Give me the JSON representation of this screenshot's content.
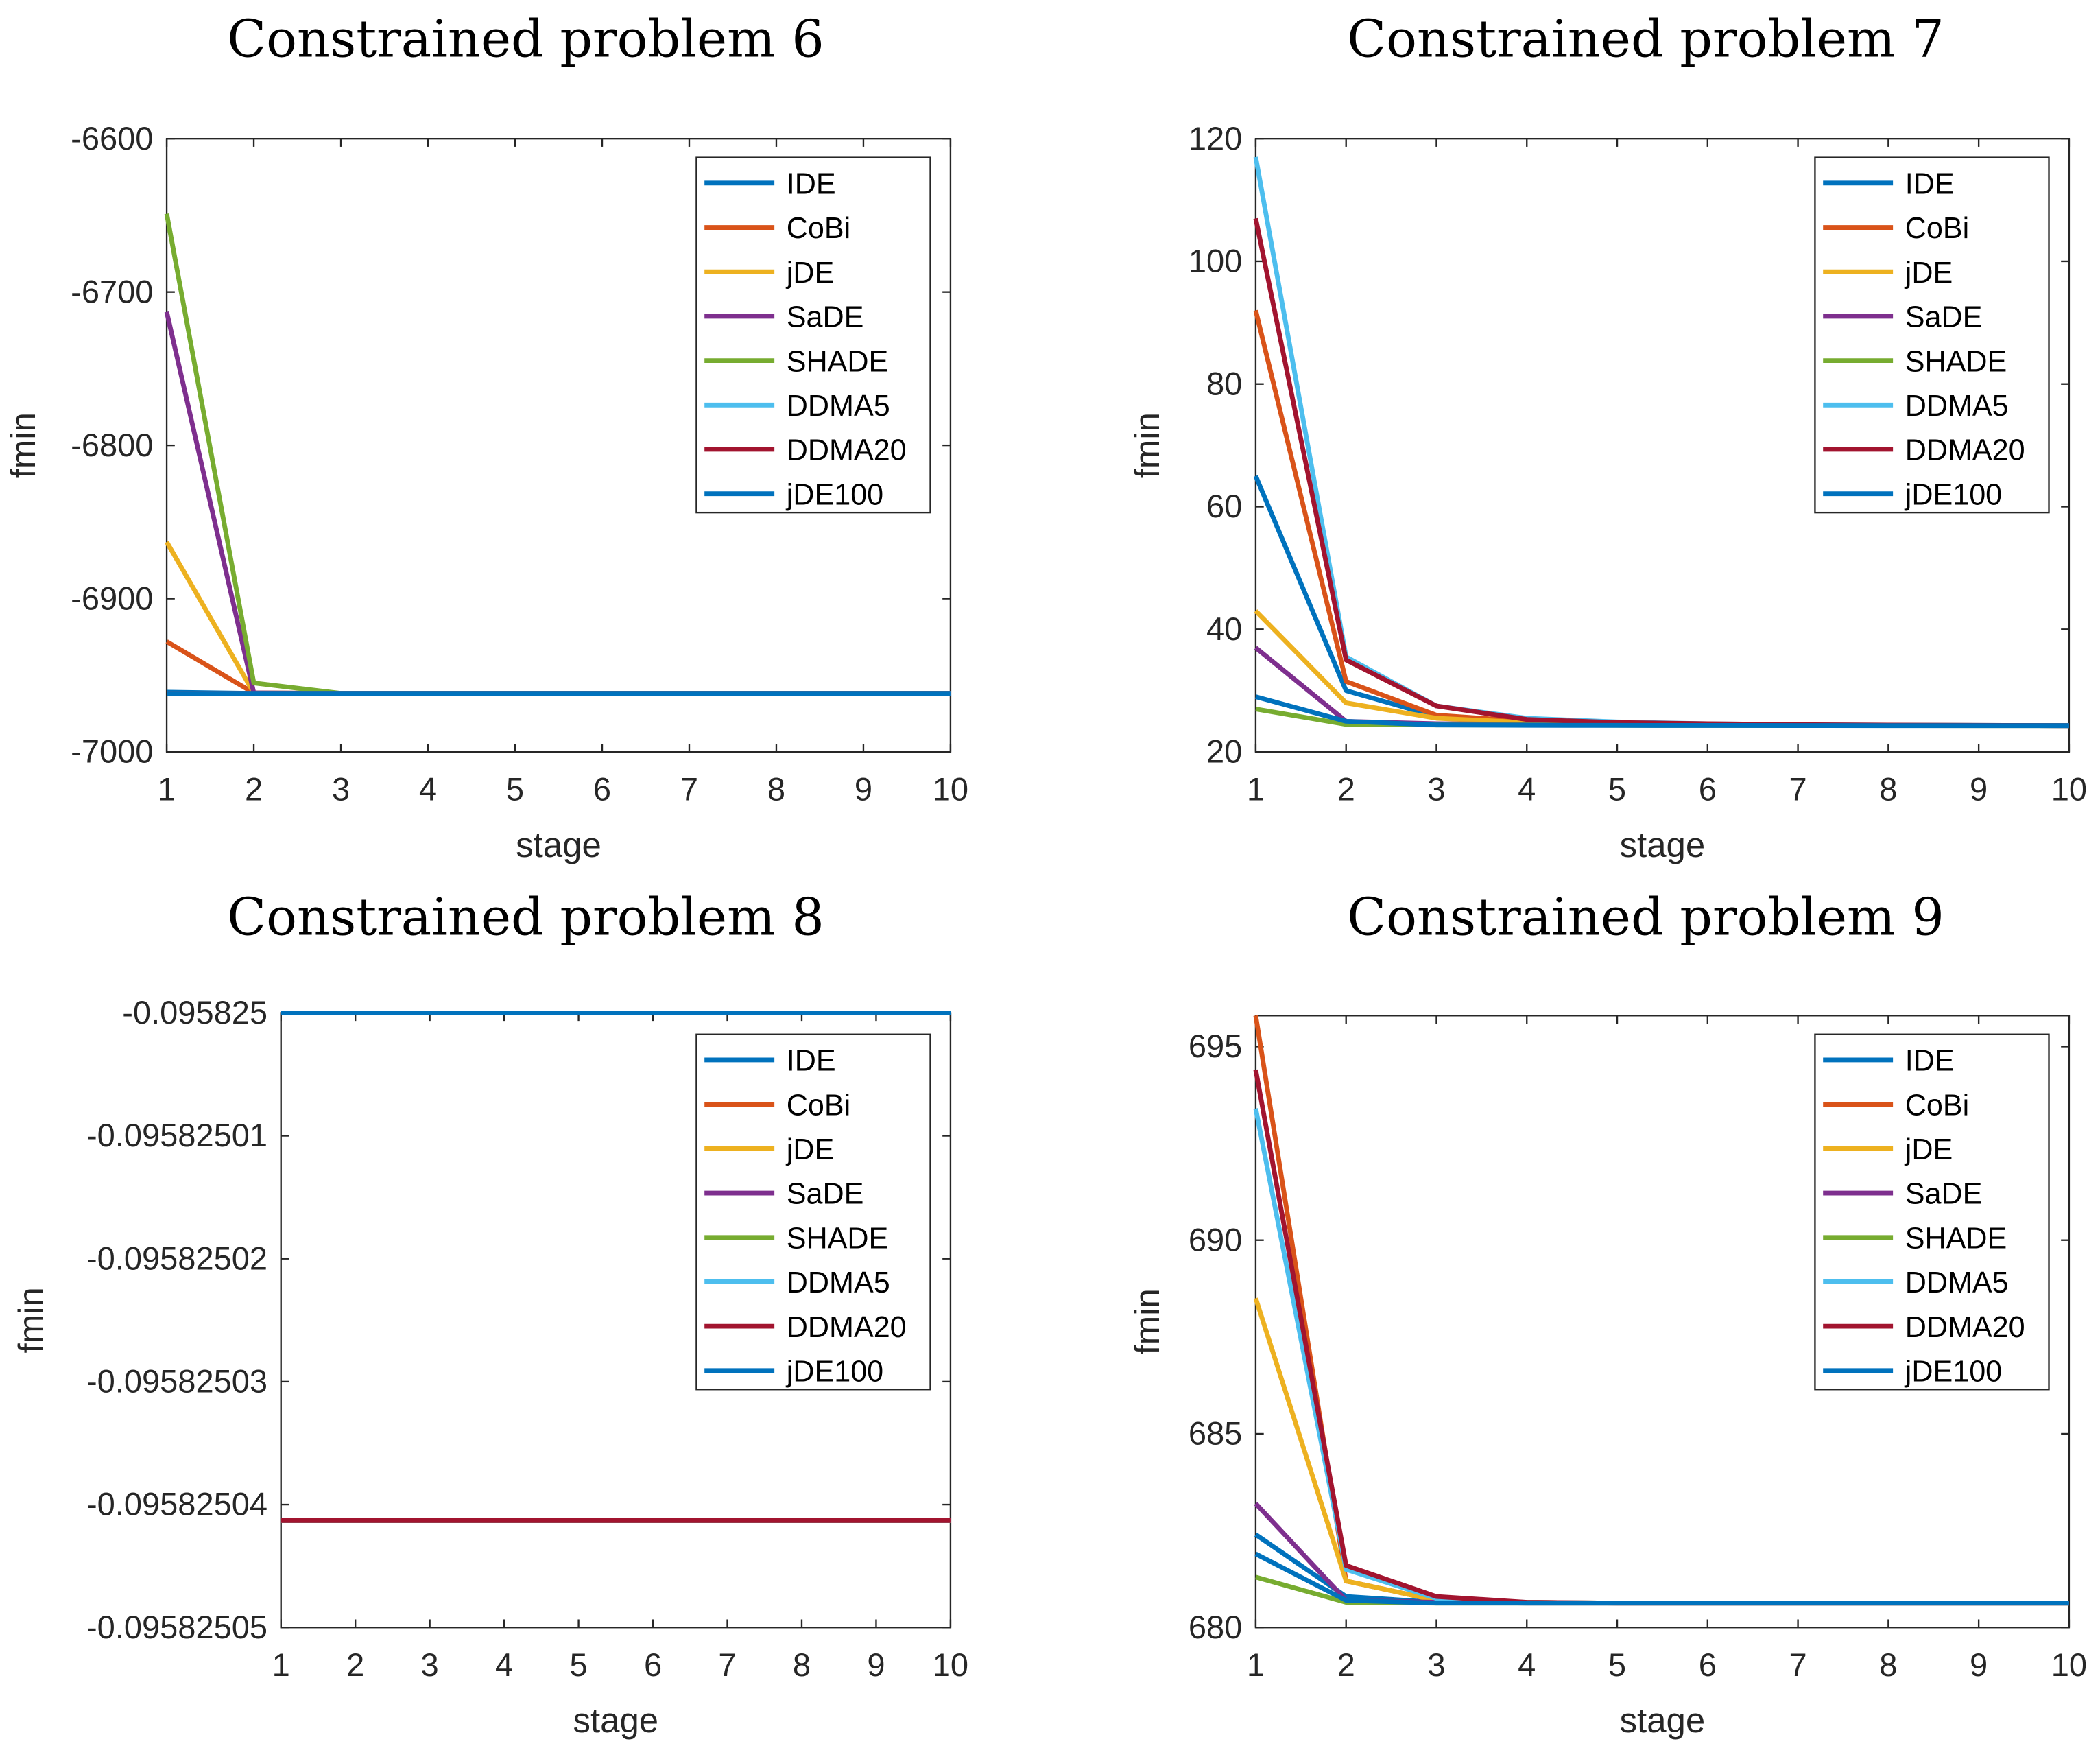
{
  "colors": {
    "IDE": "#0072BD",
    "CoBi": "#D95319",
    "jDE": "#EDB120",
    "SaDE": "#7E2F8E",
    "SHADE": "#77AC30",
    "DDMA5": "#4DBEEE",
    "DDMA20": "#A2142F",
    "jDE100": "#0072BD"
  },
  "chart_data": [
    {
      "type": "line",
      "title": "Constrained problem 6",
      "xlabel": "stage",
      "ylabel": "fmin",
      "x": [
        1,
        2,
        3,
        4,
        5,
        6,
        7,
        8,
        9,
        10
      ],
      "xlim": [
        1,
        10
      ],
      "ylim": [
        -7000,
        -6600
      ],
      "yticks": [
        -7000,
        -6900,
        -6800,
        -6700,
        -6600
      ],
      "ytick_labels": [
        "-7000",
        "-6900",
        "-6800",
        "-6700",
        "-6600"
      ],
      "xtick_labels": [
        "1",
        "2",
        "3",
        "4",
        "5",
        "6",
        "7",
        "8",
        "9",
        "10"
      ],
      "legend": "top-right",
      "grid": false,
      "series": [
        {
          "name": "IDE",
          "values": [
            -6961,
            -6961.8,
            -6961.8,
            -6961.8,
            -6961.8,
            -6961.8,
            -6961.8,
            -6961.8,
            -6961.8,
            -6961.8
          ]
        },
        {
          "name": "CoBi",
          "values": [
            -6928,
            -6961.5,
            -6961.8,
            -6961.8,
            -6961.8,
            -6961.8,
            -6961.8,
            -6961.8,
            -6961.8,
            -6961.8
          ]
        },
        {
          "name": "jDE",
          "values": [
            -6863,
            -6961.5,
            -6961.8,
            -6961.8,
            -6961.8,
            -6961.8,
            -6961.8,
            -6961.8,
            -6961.8,
            -6961.8
          ]
        },
        {
          "name": "SaDE",
          "values": [
            -6713,
            -6961.5,
            -6961.8,
            -6961.8,
            -6961.8,
            -6961.8,
            -6961.8,
            -6961.8,
            -6961.8,
            -6961.8
          ]
        },
        {
          "name": "SHADE",
          "values": [
            -6649,
            -6955,
            -6961.8,
            -6961.8,
            -6961.8,
            -6961.8,
            -6961.8,
            -6961.8,
            -6961.8,
            -6961.8
          ]
        },
        {
          "name": "DDMA5",
          "values": [
            -6961.8,
            -6961.8,
            -6961.8,
            -6961.8,
            -6961.8,
            -6961.8,
            -6961.8,
            -6961.8,
            -6961.8,
            -6961.8
          ]
        },
        {
          "name": "DDMA20",
          "values": [
            -6961.8,
            -6961.8,
            -6961.8,
            -6961.8,
            -6961.8,
            -6961.8,
            -6961.8,
            -6961.8,
            -6961.8,
            -6961.8
          ]
        },
        {
          "name": "jDE100",
          "values": [
            -6961.8,
            -6961.8,
            -6961.8,
            -6961.8,
            -6961.8,
            -6961.8,
            -6961.8,
            -6961.8,
            -6961.8,
            -6961.8
          ]
        }
      ]
    },
    {
      "type": "line",
      "title": "Constrained problem 7",
      "xlabel": "stage",
      "ylabel": "fmin",
      "x": [
        1,
        2,
        3,
        4,
        5,
        6,
        7,
        8,
        9,
        10
      ],
      "xlim": [
        1,
        10
      ],
      "ylim": [
        20,
        120
      ],
      "yticks": [
        20,
        40,
        60,
        80,
        100,
        120
      ],
      "ytick_labels": [
        "20",
        "40",
        "60",
        "80",
        "100",
        "120"
      ],
      "xtick_labels": [
        "1",
        "2",
        "3",
        "4",
        "5",
        "6",
        "7",
        "8",
        "9",
        "10"
      ],
      "legend": "top-right",
      "grid": false,
      "series": [
        {
          "name": "IDE",
          "values": [
            65,
            30,
            25.8,
            24.9,
            24.6,
            24.5,
            24.4,
            24.35,
            24.32,
            24.3
          ]
        },
        {
          "name": "CoBi",
          "values": [
            92,
            31.5,
            26,
            25,
            24.7,
            24.5,
            24.4,
            24.35,
            24.32,
            24.3
          ]
        },
        {
          "name": "jDE",
          "values": [
            43,
            28,
            25.5,
            24.8,
            24.6,
            24.5,
            24.4,
            24.35,
            24.32,
            24.3
          ]
        },
        {
          "name": "SaDE",
          "values": [
            37,
            25,
            24.6,
            24.5,
            24.4,
            24.4,
            24.35,
            24.33,
            24.32,
            24.3
          ]
        },
        {
          "name": "SHADE",
          "values": [
            27,
            24.5,
            24.4,
            24.4,
            24.35,
            24.33,
            24.32,
            24.31,
            24.3,
            24.3
          ]
        },
        {
          "name": "DDMA5",
          "values": [
            117,
            35.5,
            27.5,
            25.5,
            24.9,
            24.6,
            24.45,
            24.38,
            24.33,
            24.3
          ]
        },
        {
          "name": "DDMA20",
          "values": [
            107,
            35,
            27.5,
            25.3,
            24.8,
            24.6,
            24.45,
            24.38,
            24.33,
            24.3
          ]
        },
        {
          "name": "jDE100",
          "values": [
            29,
            25,
            24.4,
            24.35,
            24.33,
            24.32,
            24.31,
            24.3,
            24.3,
            24.3
          ]
        }
      ]
    },
    {
      "type": "line",
      "title": "Constrained problem 8",
      "xlabel": "stage",
      "ylabel": "fmin",
      "x": [
        1,
        2,
        3,
        4,
        5,
        6,
        7,
        8,
        9,
        10
      ],
      "xlim": [
        1,
        10
      ],
      "ylim": [
        -0.09582505,
        -0.095825
      ],
      "yticks": [
        -0.09582505,
        -0.09582504,
        -0.09582503,
        -0.09582502,
        -0.09582501,
        -0.095825
      ],
      "ytick_labels": [
        "-0.09582505",
        "-0.09582504",
        "-0.09582503",
        "-0.09582502",
        "-0.09582501",
        "-0.095825"
      ],
      "xtick_labels": [
        "1",
        "2",
        "3",
        "4",
        "5",
        "6",
        "7",
        "8",
        "9",
        "10"
      ],
      "legend": "top-right",
      "grid": false,
      "series": [
        {
          "name": "IDE",
          "values": [
            -0.095825,
            -0.095825,
            -0.095825,
            -0.095825,
            -0.095825,
            -0.095825,
            -0.095825,
            -0.095825,
            -0.095825,
            -0.095825
          ]
        },
        {
          "name": "CoBi",
          "values": [
            -0.0958250413,
            -0.0958250413,
            -0.0958250413,
            -0.0958250413,
            -0.0958250413,
            -0.0958250413,
            -0.0958250413,
            -0.0958250413,
            -0.0958250413,
            -0.0958250413
          ]
        },
        {
          "name": "jDE",
          "values": [
            -0.0958250413,
            -0.0958250413,
            -0.0958250413,
            -0.0958250413,
            -0.0958250413,
            -0.0958250413,
            -0.0958250413,
            -0.0958250413,
            -0.0958250413,
            -0.0958250413
          ]
        },
        {
          "name": "SaDE",
          "values": [
            -0.0958250413,
            -0.0958250413,
            -0.0958250413,
            -0.0958250413,
            -0.0958250413,
            -0.0958250413,
            -0.0958250413,
            -0.0958250413,
            -0.0958250413,
            -0.0958250413
          ]
        },
        {
          "name": "SHADE",
          "values": [
            -0.0958250413,
            -0.0958250413,
            -0.0958250413,
            -0.0958250413,
            -0.0958250413,
            -0.0958250413,
            -0.0958250413,
            -0.0958250413,
            -0.0958250413,
            -0.0958250413
          ]
        },
        {
          "name": "DDMA5",
          "values": [
            -0.0958250413,
            -0.0958250413,
            -0.0958250413,
            -0.0958250413,
            -0.0958250413,
            -0.0958250413,
            -0.0958250413,
            -0.0958250413,
            -0.0958250413,
            -0.0958250413
          ]
        },
        {
          "name": "DDMA20",
          "values": [
            -0.0958250413,
            -0.0958250413,
            -0.0958250413,
            -0.0958250413,
            -0.0958250413,
            -0.0958250413,
            -0.0958250413,
            -0.0958250413,
            -0.0958250413,
            -0.0958250413
          ]
        },
        {
          "name": "jDE100",
          "values": [
            -0.095825,
            -0.095825,
            -0.095825,
            -0.095825,
            -0.095825,
            -0.095825,
            -0.095825,
            -0.095825,
            -0.095825,
            -0.095825
          ]
        }
      ]
    },
    {
      "type": "line",
      "title": "Constrained problem 9",
      "xlabel": "stage",
      "ylabel": "fmin",
      "x": [
        1,
        2,
        3,
        4,
        5,
        6,
        7,
        8,
        9,
        10
      ],
      "xlim": [
        1,
        10
      ],
      "ylim": [
        680,
        695.8
      ],
      "yticks": [
        680,
        685,
        690,
        695
      ],
      "ytick_labels": [
        "680",
        "685",
        "690",
        "695"
      ],
      "xtick_labels": [
        "1",
        "2",
        "3",
        "4",
        "5",
        "6",
        "7",
        "8",
        "9",
        "10"
      ],
      "legend": "top-right",
      "grid": false,
      "series": [
        {
          "name": "IDE",
          "values": [
            682.4,
            680.8,
            680.65,
            680.63,
            680.63,
            680.63,
            680.63,
            680.63,
            680.63,
            680.63
          ]
        },
        {
          "name": "CoBi",
          "values": [
            695.8,
            681.2,
            680.7,
            680.65,
            680.63,
            680.63,
            680.63,
            680.63,
            680.63,
            680.63
          ]
        },
        {
          "name": "jDE",
          "values": [
            688.5,
            681.2,
            680.7,
            680.65,
            680.63,
            680.63,
            680.63,
            680.63,
            680.63,
            680.63
          ]
        },
        {
          "name": "SaDE",
          "values": [
            683.2,
            680.7,
            680.65,
            680.63,
            680.63,
            680.63,
            680.63,
            680.63,
            680.63,
            680.63
          ]
        },
        {
          "name": "SHADE",
          "values": [
            681.3,
            680.65,
            680.63,
            680.63,
            680.63,
            680.63,
            680.63,
            680.63,
            680.63,
            680.63
          ]
        },
        {
          "name": "DDMA5",
          "values": [
            693.4,
            681.5,
            680.75,
            680.65,
            680.63,
            680.63,
            680.63,
            680.63,
            680.63,
            680.63
          ]
        },
        {
          "name": "DDMA20",
          "values": [
            694.4,
            681.6,
            680.8,
            680.65,
            680.63,
            680.63,
            680.63,
            680.63,
            680.63,
            680.63
          ]
        },
        {
          "name": "jDE100",
          "values": [
            681.9,
            680.7,
            680.63,
            680.63,
            680.63,
            680.63,
            680.63,
            680.63,
            680.63,
            680.63
          ]
        }
      ]
    }
  ]
}
